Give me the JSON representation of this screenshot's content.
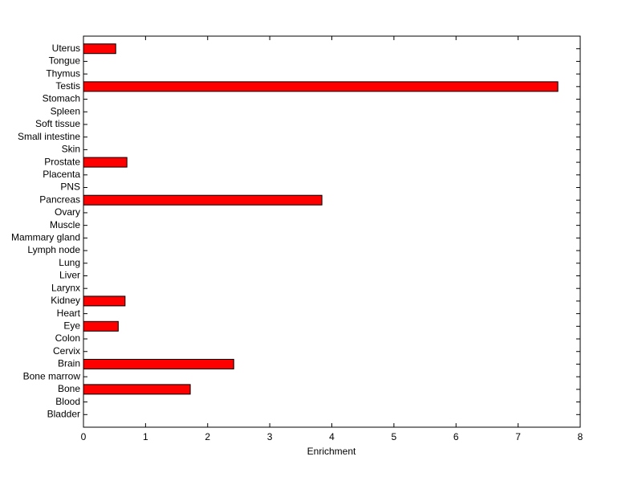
{
  "chart_data": {
    "type": "barh",
    "xlabel": "Enrichment",
    "categories": [
      "Bladder",
      "Blood",
      "Bone",
      "Bone marrow",
      "Brain",
      "Cervix",
      "Colon",
      "Eye",
      "Heart",
      "Kidney",
      "Larynx",
      "Liver",
      "Lung",
      "Lymph node",
      "Mammary gland",
      "Muscle",
      "Ovary",
      "Pancreas",
      "PNS",
      "Placenta",
      "Prostate",
      "Skin",
      "Small intestine",
      "Soft tissue",
      "Spleen",
      "Stomach",
      "Testis",
      "Thymus",
      "Tongue",
      "Uterus"
    ],
    "values": [
      0,
      0,
      1.72,
      0,
      2.42,
      0,
      0,
      0.56,
      0,
      0.67,
      0,
      0,
      0,
      0,
      0,
      0,
      0,
      3.84,
      0,
      0,
      0.7,
      0,
      0,
      0,
      0,
      0,
      7.64,
      0,
      0,
      0.52
    ],
    "color": "#ff0000",
    "xlim": [
      0,
      8
    ],
    "xticks": [
      0,
      1,
      2,
      3,
      4,
      5,
      6,
      7,
      8
    ]
  }
}
